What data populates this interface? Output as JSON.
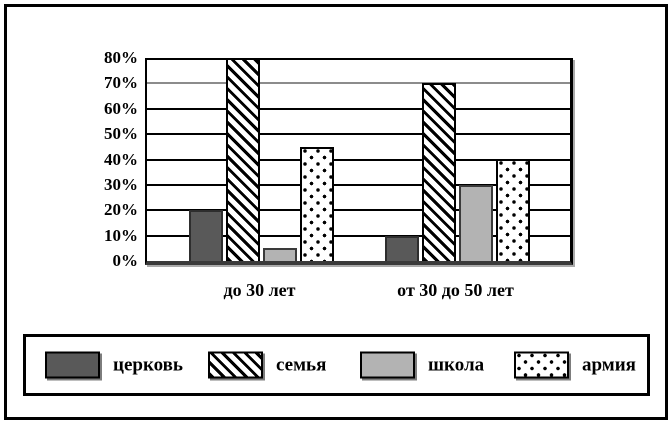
{
  "chart_data": {
    "type": "bar",
    "title": "",
    "categories": [
      "до 30 лет",
      "от 30 до 50 лет"
    ],
    "series": [
      {
        "name": "церковь",
        "values": [
          20,
          10
        ],
        "pattern": "solid-dark",
        "color": "#595959"
      },
      {
        "name": "семья",
        "values": [
          80,
          70
        ],
        "pattern": "diagonal-hatch",
        "color": "#000000"
      },
      {
        "name": "школа",
        "values": [
          5,
          30
        ],
        "pattern": "solid-light",
        "color": "#b3b3b3"
      },
      {
        "name": "армия",
        "values": [
          45,
          40
        ],
        "pattern": "dots",
        "color": "#000000"
      }
    ],
    "ylim": [
      0,
      80
    ],
    "ytick_step": 10,
    "yticks": [
      0,
      10,
      20,
      30,
      40,
      50,
      60,
      70,
      80
    ],
    "ytick_labels": [
      "0%",
      "10%",
      "20%",
      "30%",
      "40%",
      "50%",
      "60%",
      "70%",
      "80%"
    ],
    "grid": true,
    "gridline_colors": {
      "default": "#000000",
      "70": "#8c8c8c"
    },
    "legend_position": "bottom-box"
  }
}
